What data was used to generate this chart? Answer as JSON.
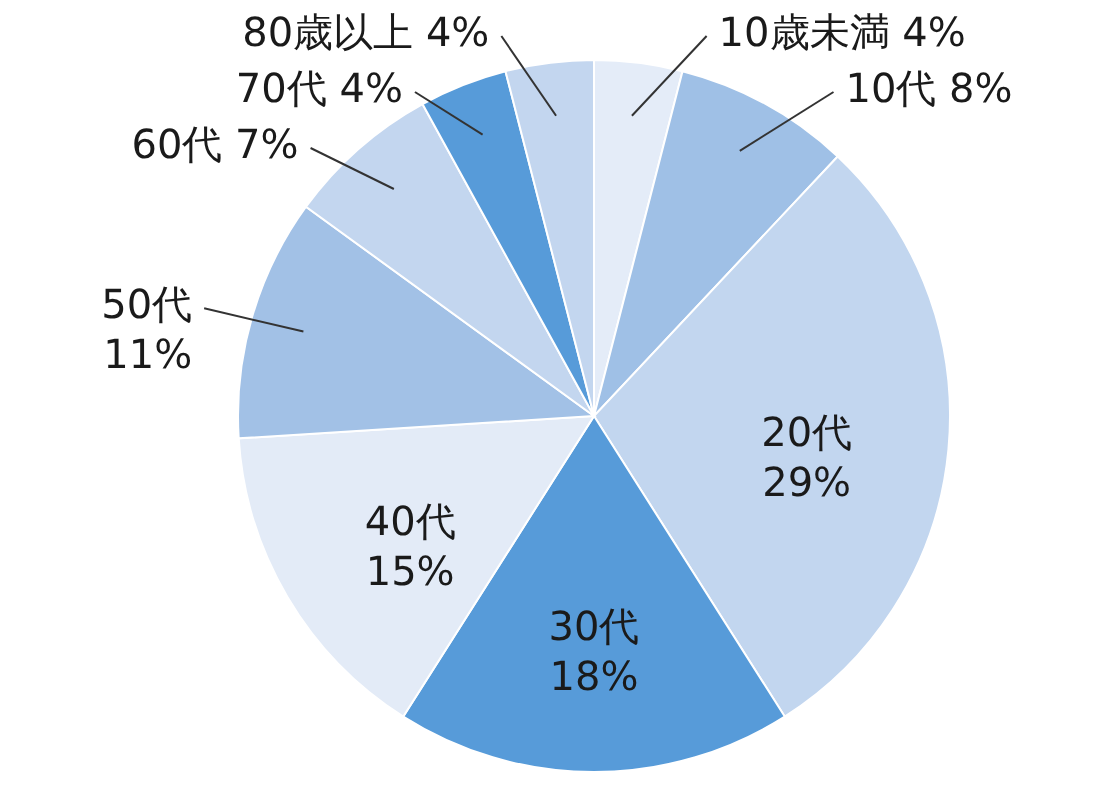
{
  "chart_data": {
    "type": "pie",
    "categories": [
      "10歳未満",
      "10代",
      "20代",
      "30代",
      "40代",
      "50代",
      "60代",
      "70代",
      "80歳以上"
    ],
    "values": [
      4,
      8,
      29,
      18,
      15,
      11,
      7,
      4,
      4
    ],
    "value_labels": [
      "4%",
      "8%",
      "29%",
      "18%",
      "15%",
      "11%",
      "7%",
      "4%",
      "4%"
    ],
    "colors": [
      "#e4ecf8",
      "#9fc0e6",
      "#c2d6ef",
      "#579bd9",
      "#e3ebf7",
      "#a2c1e6",
      "#c3d6ef",
      "#579bd9",
      "#c3d6ef"
    ]
  }
}
